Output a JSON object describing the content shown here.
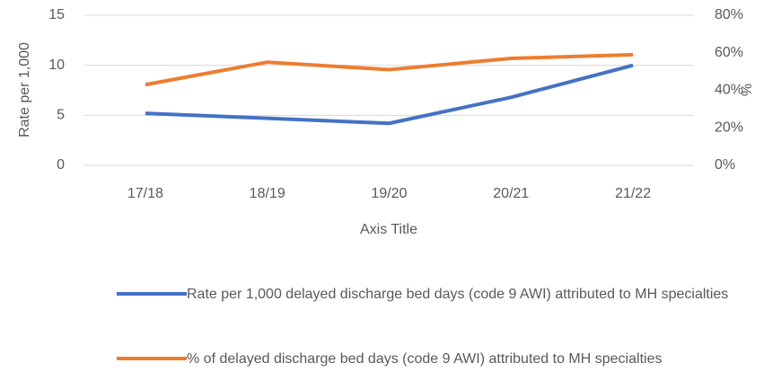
{
  "chart_data": {
    "type": "line",
    "y_label": "Rate per 1,000",
    "y2_label": "%",
    "x_label": "Axis Title",
    "categories": [
      "17/18",
      "18/19",
      "19/20",
      "20/21",
      "21/22"
    ],
    "series": [
      {
        "name": "Rate per 1,000 delayed discharge bed days (code 9 AWI) attributed to MH specialties",
        "color": "#4472c4",
        "values": [
          5.2,
          4.7,
          4.2,
          6.8,
          10.0
        ]
      },
      {
        "name": "% of delayed discharge bed days (code 9 AWI) attributed to MH specialties",
        "color": "#ed7d31",
        "axis": "y2",
        "values": [
          43,
          55,
          51,
          57,
          59
        ]
      }
    ],
    "ylim": [
      0,
      15
    ],
    "yticks": [
      0,
      5,
      10,
      15
    ],
    "y2lim": [
      0,
      80
    ],
    "y2ticks": [
      {
        "value": 0,
        "label": "0%"
      },
      {
        "value": 20,
        "label": "20%"
      },
      {
        "value": 40,
        "label": "40%"
      },
      {
        "value": 60,
        "label": "60%"
      },
      {
        "value": 80,
        "label": "80%"
      }
    ],
    "grid": true,
    "legend": "bottom"
  }
}
